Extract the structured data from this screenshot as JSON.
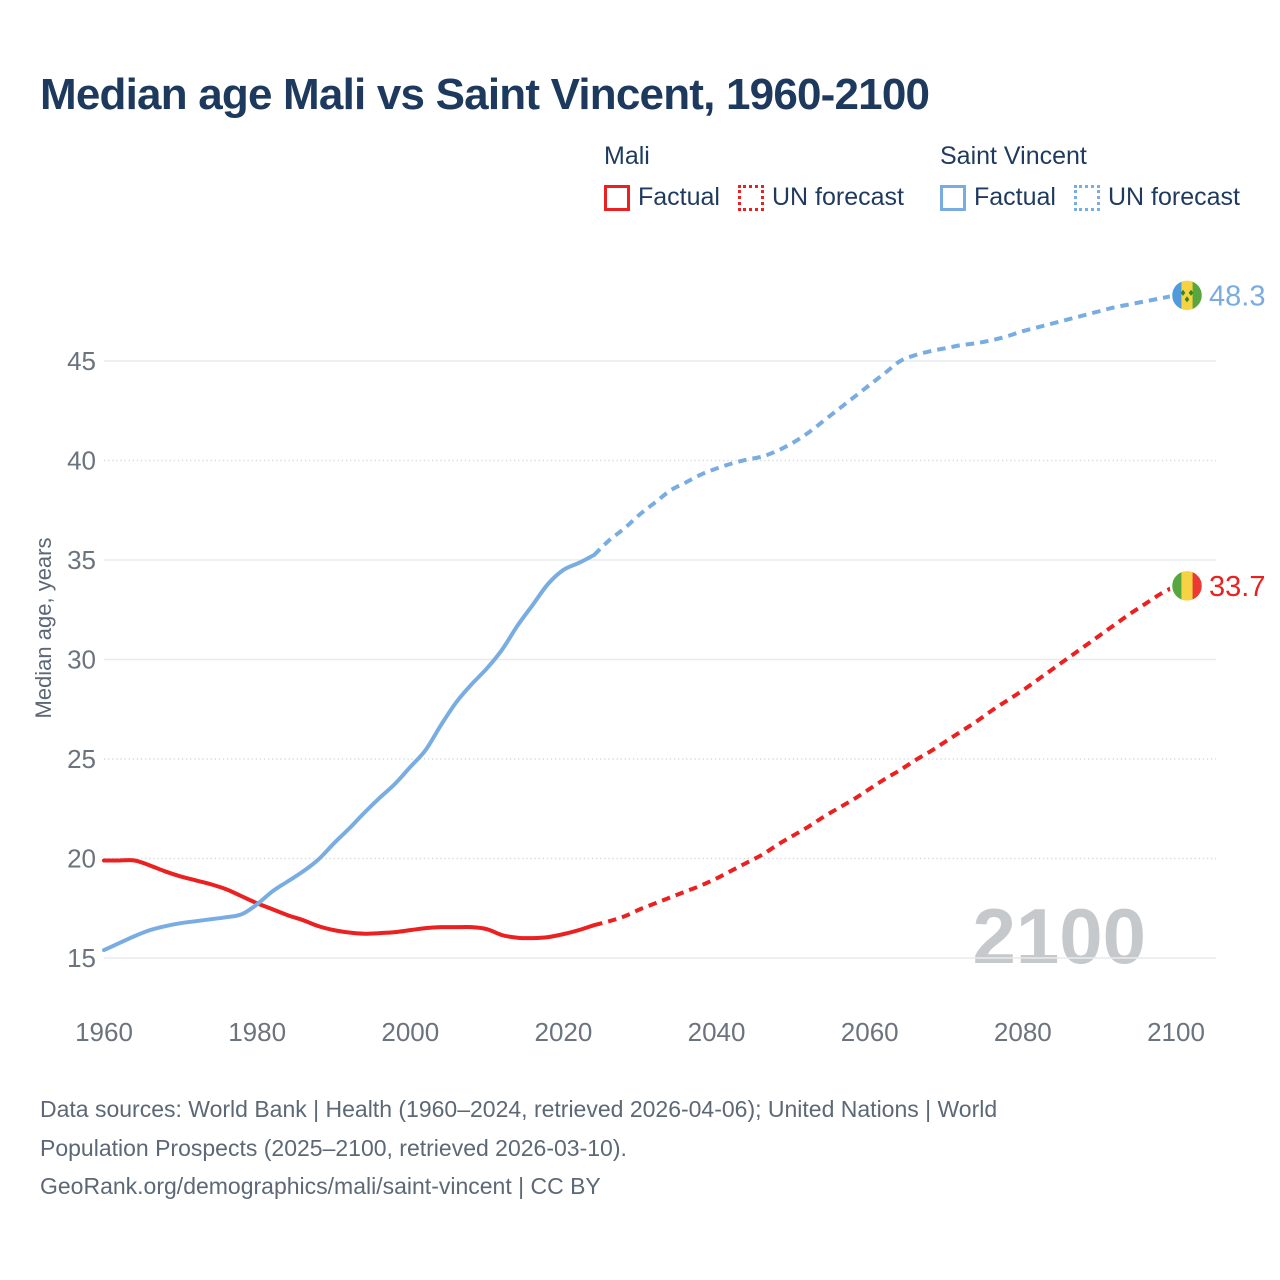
{
  "title": "Median age Mali vs Saint Vincent, 1960-2100",
  "colors": {
    "mali_red": "#eb2020",
    "saint_vincent_blue": "#79ade2",
    "heading_navy": "#1d3a5e",
    "tick_gray": "#6b737d",
    "muted_gray": "#5c6875",
    "watermark_gray": "#c6c9cc",
    "grid_solid": "#e9eaeb",
    "grid_dotted": "#d8dadb"
  },
  "legend": {
    "mali": {
      "header": "Mali",
      "factual": "Factual",
      "forecast": "UN forecast"
    },
    "saint_vincent": {
      "header": "Saint Vincent",
      "factual": "Factual",
      "forecast": "UN forecast"
    }
  },
  "watermark": "2100",
  "footer": {
    "line1": "Data sources: World Bank | Health (1960–2024, retrieved 2026-04-06); United Nations | World",
    "line2": "Population Prospects (2025–2100, retrieved 2026-03-10).",
    "line3": "GeoRank.org/demographics/mali/saint-vincent | CC BY"
  },
  "chart_data": {
    "type": "line",
    "title": "Median age Mali vs Saint Vincent, 1960-2100",
    "xlabel": "",
    "ylabel": "Median age, years",
    "xlim": [
      1960,
      2100
    ],
    "ylim": [
      15,
      48.3
    ],
    "grid": true,
    "legend_position": "top-right",
    "x_ticks": [
      1960,
      1980,
      2000,
      2020,
      2040,
      2060,
      2080,
      2100
    ],
    "y_ticks": [
      15,
      20,
      25,
      30,
      35,
      40,
      45
    ],
    "y_gridlines": [
      {
        "value": 15,
        "style": "solid"
      },
      {
        "value": 20,
        "style": "dotted"
      },
      {
        "value": 25,
        "style": "dotted"
      },
      {
        "value": 30,
        "style": "solid"
      },
      {
        "value": 35,
        "style": "solid"
      },
      {
        "value": 40,
        "style": "dotted"
      },
      {
        "value": 45,
        "style": "solid"
      }
    ],
    "series": [
      {
        "name": "Mali factual",
        "color": "#eb2020",
        "style": "solid",
        "points": [
          [
            1960,
            19.9
          ],
          [
            1962,
            19.9
          ],
          [
            1964,
            19.9
          ],
          [
            1966,
            19.65
          ],
          [
            1968,
            19.35
          ],
          [
            1970,
            19.1
          ],
          [
            1972,
            18.9
          ],
          [
            1974,
            18.7
          ],
          [
            1976,
            18.45
          ],
          [
            1978,
            18.1
          ],
          [
            1980,
            17.75
          ],
          [
            1982,
            17.45
          ],
          [
            1984,
            17.15
          ],
          [
            1986,
            16.9
          ],
          [
            1988,
            16.6
          ],
          [
            1990,
            16.4
          ],
          [
            1992,
            16.28
          ],
          [
            1994,
            16.22
          ],
          [
            1996,
            16.25
          ],
          [
            1998,
            16.3
          ],
          [
            2000,
            16.4
          ],
          [
            2002,
            16.5
          ],
          [
            2004,
            16.55
          ],
          [
            2006,
            16.55
          ],
          [
            2008,
            16.55
          ],
          [
            2010,
            16.45
          ],
          [
            2012,
            16.15
          ],
          [
            2014,
            16.02
          ],
          [
            2016,
            16.0
          ],
          [
            2018,
            16.05
          ],
          [
            2020,
            16.2
          ],
          [
            2022,
            16.4
          ],
          [
            2024,
            16.65
          ]
        ]
      },
      {
        "name": "Mali UN forecast",
        "color": "#eb2020",
        "style": "dashed",
        "points": [
          [
            2024,
            16.65
          ],
          [
            2026,
            16.85
          ],
          [
            2028,
            17.1
          ],
          [
            2030,
            17.45
          ],
          [
            2032,
            17.75
          ],
          [
            2034,
            18.05
          ],
          [
            2036,
            18.35
          ],
          [
            2038,
            18.65
          ],
          [
            2040,
            19.0
          ],
          [
            2042,
            19.4
          ],
          [
            2044,
            19.8
          ],
          [
            2046,
            20.2
          ],
          [
            2048,
            20.7
          ],
          [
            2050,
            21.15
          ],
          [
            2052,
            21.6
          ],
          [
            2054,
            22.1
          ],
          [
            2056,
            22.55
          ],
          [
            2058,
            23.0
          ],
          [
            2060,
            23.5
          ],
          [
            2062,
            24.0
          ],
          [
            2064,
            24.45
          ],
          [
            2066,
            24.95
          ],
          [
            2068,
            25.4
          ],
          [
            2070,
            25.9
          ],
          [
            2072,
            26.4
          ],
          [
            2074,
            26.9
          ],
          [
            2076,
            27.45
          ],
          [
            2078,
            27.95
          ],
          [
            2080,
            28.45
          ],
          [
            2082,
            29.0
          ],
          [
            2084,
            29.55
          ],
          [
            2086,
            30.1
          ],
          [
            2088,
            30.65
          ],
          [
            2090,
            31.2
          ],
          [
            2092,
            31.75
          ],
          [
            2094,
            32.3
          ],
          [
            2096,
            32.8
          ],
          [
            2098,
            33.3
          ],
          [
            2100,
            33.7
          ]
        ]
      },
      {
        "name": "Saint Vincent factual",
        "color": "#79ade2",
        "style": "solid",
        "points": [
          [
            1960,
            15.4
          ],
          [
            1962,
            15.75
          ],
          [
            1964,
            16.1
          ],
          [
            1966,
            16.4
          ],
          [
            1968,
            16.6
          ],
          [
            1970,
            16.75
          ],
          [
            1972,
            16.85
          ],
          [
            1974,
            16.95
          ],
          [
            1976,
            17.05
          ],
          [
            1978,
            17.2
          ],
          [
            1980,
            17.7
          ],
          [
            1982,
            18.35
          ],
          [
            1984,
            18.85
          ],
          [
            1986,
            19.35
          ],
          [
            1988,
            19.95
          ],
          [
            1990,
            20.75
          ],
          [
            1992,
            21.5
          ],
          [
            1994,
            22.3
          ],
          [
            1996,
            23.05
          ],
          [
            1998,
            23.75
          ],
          [
            2000,
            24.6
          ],
          [
            2002,
            25.45
          ],
          [
            2004,
            26.7
          ],
          [
            2006,
            27.85
          ],
          [
            2008,
            28.75
          ],
          [
            2010,
            29.55
          ],
          [
            2012,
            30.5
          ],
          [
            2014,
            31.7
          ],
          [
            2016,
            32.75
          ],
          [
            2018,
            33.8
          ],
          [
            2020,
            34.5
          ],
          [
            2022,
            34.85
          ],
          [
            2024,
            35.25
          ]
        ]
      },
      {
        "name": "Saint Vincent UN forecast",
        "color": "#79ade2",
        "style": "dashed",
        "points": [
          [
            2024,
            35.25
          ],
          [
            2026,
            36.0
          ],
          [
            2028,
            36.6
          ],
          [
            2030,
            37.3
          ],
          [
            2032,
            37.9
          ],
          [
            2034,
            38.5
          ],
          [
            2036,
            38.9
          ],
          [
            2038,
            39.3
          ],
          [
            2040,
            39.6
          ],
          [
            2042,
            39.85
          ],
          [
            2044,
            40.05
          ],
          [
            2046,
            40.2
          ],
          [
            2048,
            40.5
          ],
          [
            2050,
            40.9
          ],
          [
            2052,
            41.4
          ],
          [
            2054,
            42.0
          ],
          [
            2056,
            42.6
          ],
          [
            2058,
            43.2
          ],
          [
            2060,
            43.8
          ],
          [
            2062,
            44.4
          ],
          [
            2064,
            45.0
          ],
          [
            2066,
            45.3
          ],
          [
            2068,
            45.5
          ],
          [
            2070,
            45.65
          ],
          [
            2072,
            45.8
          ],
          [
            2074,
            45.9
          ],
          [
            2076,
            46.05
          ],
          [
            2078,
            46.25
          ],
          [
            2080,
            46.5
          ],
          [
            2082,
            46.7
          ],
          [
            2084,
            46.9
          ],
          [
            2086,
            47.1
          ],
          [
            2088,
            47.3
          ],
          [
            2090,
            47.5
          ],
          [
            2092,
            47.7
          ],
          [
            2094,
            47.85
          ],
          [
            2096,
            48.0
          ],
          [
            2098,
            48.15
          ],
          [
            2100,
            48.3
          ]
        ]
      }
    ],
    "end_markers": {
      "saint_vincent": {
        "value_label": "48.3",
        "year": 2100,
        "value": 48.3,
        "flag": "saint-vincent-flag",
        "label_color": "#79ade2",
        "stripes": [
          "#4f9bdd",
          "#f6d343",
          "#57a63f"
        ],
        "diamond_color": "#35851f"
      },
      "mali": {
        "value_label": "33.7",
        "year": 2100,
        "value": 33.7,
        "flag": "mali-flag",
        "label_color": "#eb2020",
        "stripes": [
          "#57a63f",
          "#f6d343",
          "#ea3a32"
        ]
      }
    }
  }
}
